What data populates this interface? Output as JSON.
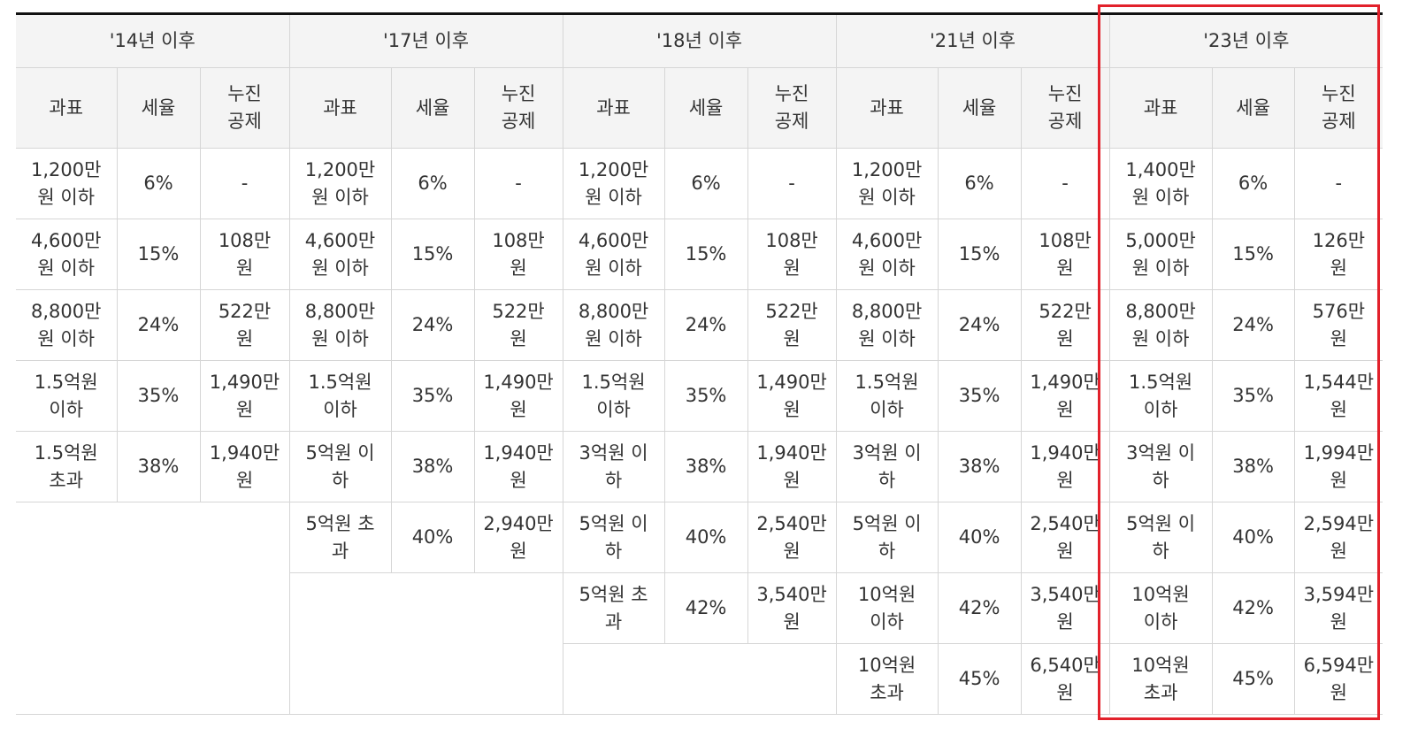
{
  "periods": [
    "'14년 이후",
    "'17년 이후",
    "'18년 이후",
    "'21년 이후",
    "'23년 이후"
  ],
  "sub_headers": [
    "과표",
    "세율",
    "누진\n공제"
  ],
  "rows": [
    [
      [
        "1,200만\n원 이하",
        "6%",
        "-"
      ],
      [
        "1,200만\n원 이하",
        "6%",
        "-"
      ],
      [
        "1,200만\n원 이하",
        "6%",
        "-"
      ],
      [
        "1,200만\n원 이하",
        "6%",
        "-"
      ],
      [
        "1,400만\n원 이하",
        "6%",
        "-"
      ]
    ],
    [
      [
        "4,600만\n원 이하",
        "15%",
        "108만\n원"
      ],
      [
        "4,600만\n원 이하",
        "15%",
        "108만\n원"
      ],
      [
        "4,600만\n원 이하",
        "15%",
        "108만\n원"
      ],
      [
        "4,600만\n원 이하",
        "15%",
        "108만\n원"
      ],
      [
        "5,000만\n원 이하",
        "15%",
        "126만\n원"
      ]
    ],
    [
      [
        "8,800만\n원 이하",
        "24%",
        "522만\n원"
      ],
      [
        "8,800만\n원 이하",
        "24%",
        "522만\n원"
      ],
      [
        "8,800만\n원 이하",
        "24%",
        "522만\n원"
      ],
      [
        "8,800만\n원 이하",
        "24%",
        "522만\n원"
      ],
      [
        "8,800만\n원 이하",
        "24%",
        "576만\n원"
      ]
    ],
    [
      [
        "1.5억원\n이하",
        "35%",
        "1,490만\n원"
      ],
      [
        "1.5억원\n이하",
        "35%",
        "1,490만\n원"
      ],
      [
        "1.5억원\n이하",
        "35%",
        "1,490만\n원"
      ],
      [
        "1.5억원\n이하",
        "35%",
        "1,490만\n원"
      ],
      [
        "1.5억원\n이하",
        "35%",
        "1,544만\n원"
      ]
    ],
    [
      [
        "1.5억원\n초과",
        "38%",
        "1,940만\n원"
      ],
      [
        "5억원 이\n하",
        "38%",
        "1,940만\n원"
      ],
      [
        "3억원 이\n하",
        "38%",
        "1,940만\n원"
      ],
      [
        "3억원 이\n하",
        "38%",
        "1,940만\n원"
      ],
      [
        "3억원 이\n하",
        "38%",
        "1,994만\n원"
      ]
    ],
    [
      null,
      [
        "5억원 초\n과",
        "40%",
        "2,940만\n원"
      ],
      [
        "5억원 이\n하",
        "40%",
        "2,540만\n원"
      ],
      [
        "5억원 이\n하",
        "40%",
        "2,540만\n원"
      ],
      [
        "5억원 이\n하",
        "40%",
        "2,594만\n원"
      ]
    ],
    [
      null,
      null,
      [
        "5억원 초\n과",
        "42%",
        "3,540만\n원"
      ],
      [
        "10억원\n이하",
        "42%",
        "3,540만\n원"
      ],
      [
        "10억원\n이하",
        "42%",
        "3,594만\n원"
      ]
    ],
    [
      null,
      null,
      null,
      [
        "10억원\n초과",
        "45%",
        "6,540만\n원"
      ],
      [
        "10억원\n초과",
        "45%",
        "6,594만\n원"
      ]
    ]
  ],
  "colors": {
    "highlight_border": "#e2212b",
    "header_bg": "#f4f4f4",
    "grid": "#d6d6d6",
    "top_rule": "#111111"
  }
}
